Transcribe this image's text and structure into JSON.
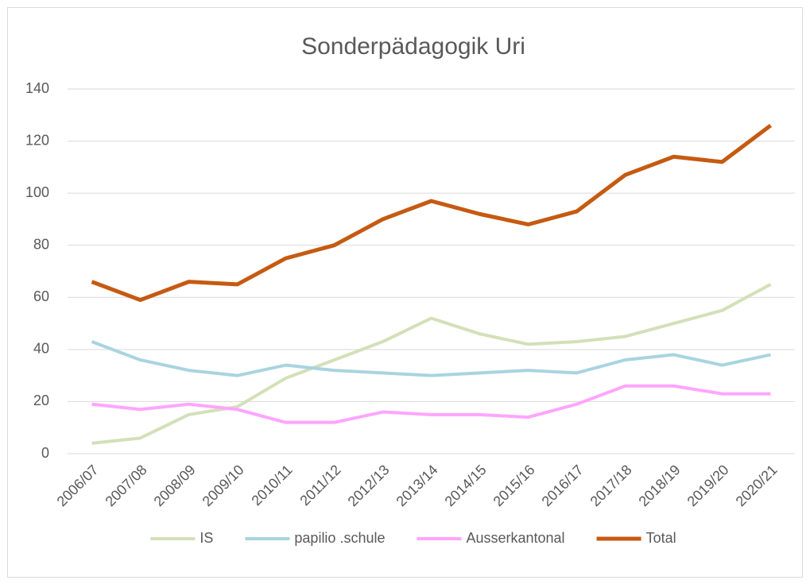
{
  "chart_data": {
    "type": "line",
    "title": "Sonderpädagogik Uri",
    "categories": [
      "2006/07",
      "2007/08",
      "2008/09",
      "2009/10",
      "2010/11",
      "2011/12",
      "2012/13",
      "2013/14",
      "2014/15",
      "2015/16",
      "2016/17",
      "2017/18",
      "2018/19",
      "2019/20",
      "2020/21"
    ],
    "series": [
      {
        "name": "IS",
        "color": "#d3e0b8",
        "values": [
          4,
          6,
          15,
          18,
          29,
          36,
          43,
          52,
          46,
          42,
          43,
          45,
          50,
          55,
          65
        ]
      },
      {
        "name": "papilio .schule",
        "color": "#a8d4e0",
        "values": [
          43,
          36,
          32,
          30,
          34,
          32,
          31,
          30,
          31,
          32,
          31,
          36,
          38,
          34,
          38
        ]
      },
      {
        "name": "Ausserkantonal",
        "color": "#ffa5ff",
        "values": [
          19,
          17,
          19,
          17,
          12,
          12,
          16,
          15,
          15,
          14,
          19,
          26,
          26,
          23,
          23
        ]
      },
      {
        "name": "Total",
        "color": "#c55a11",
        "values": [
          66,
          59,
          66,
          65,
          75,
          80,
          90,
          97,
          92,
          88,
          93,
          107,
          114,
          112,
          126
        ]
      }
    ],
    "ylim": [
      0,
      140
    ],
    "yticks": [
      0,
      20,
      40,
      60,
      80,
      100,
      120,
      140
    ],
    "grid": true,
    "legend": "bottom"
  }
}
